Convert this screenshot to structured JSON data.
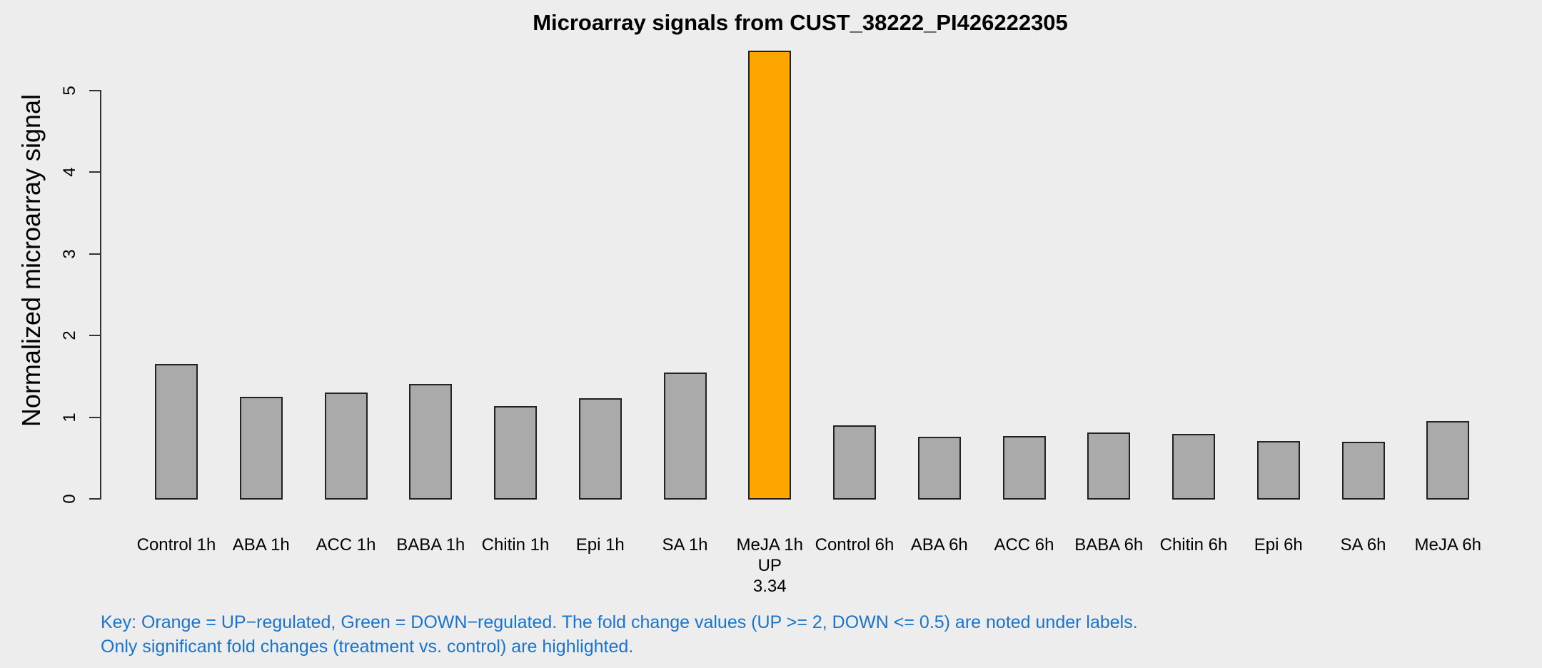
{
  "chart_data": {
    "type": "bar",
    "title": "Microarray signals from CUST_38222_PI426222305",
    "xlabel": "",
    "ylabel": "Normalized microarray signal",
    "ylim": [
      0,
      5
    ],
    "yticks": [
      0,
      1,
      2,
      3,
      4,
      5
    ],
    "grid": false,
    "legend_position": "none",
    "categories": [
      "Control 1h",
      "ABA 1h",
      "ACC 1h",
      "BABA 1h",
      "Chitin 1h",
      "Epi 1h",
      "SA 1h",
      "MeJA 1h",
      "Control 6h",
      "ABA 6h",
      "ACC 6h",
      "BABA 6h",
      "Chitin 6h",
      "Epi 6h",
      "SA 6h",
      "MeJA 6h"
    ],
    "values": [
      1.64,
      1.24,
      1.29,
      1.4,
      1.13,
      1.22,
      1.54,
      5.48,
      0.89,
      0.75,
      0.76,
      0.8,
      0.79,
      0.7,
      0.69,
      0.94
    ],
    "highlight": {
      "index": 7,
      "category": "MeJA 1h",
      "direction": "UP",
      "fold_change": "3.34"
    }
  },
  "colors": {
    "background": "#EDEDED",
    "bar_fill": "#AAAAAA",
    "bar_border": "#222222",
    "highlight_fill": "#FFA500",
    "axis": "#333333",
    "text": "#000000",
    "note_text": "#1874CD"
  },
  "footer": {
    "line1": "Key: Orange = UP−regulated, Green = DOWN−regulated. The fold change values (UP >= 2, DOWN <= 0.5) are noted under labels.",
    "line2": "Only significant fold changes (treatment vs. control) are highlighted."
  }
}
